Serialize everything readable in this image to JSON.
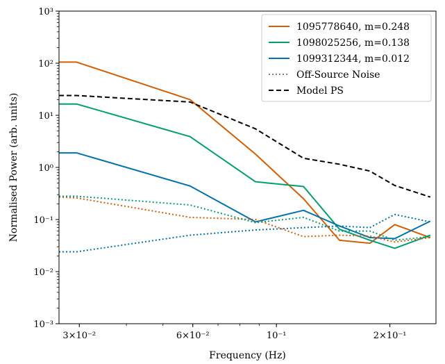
{
  "chart_data": {
    "type": "line",
    "xlabel": "Frequency (Hz)",
    "ylabel": "Normalised Power (arb. units)",
    "xscale": "log",
    "yscale": "log",
    "xlim": [
      0.0265,
      0.265
    ],
    "ylim": [
      0.001,
      1000
    ],
    "grid": false,
    "legend_position": "top-right",
    "x_ticks": [
      {
        "value": 0.03,
        "label": "3×10⁻²"
      },
      {
        "value": 0.06,
        "label": "6×10⁻²"
      },
      {
        "value": 0.1,
        "label": "10⁻¹"
      },
      {
        "value": 0.2,
        "label": "2×10⁻¹"
      }
    ],
    "y_ticks": [
      {
        "value": 0.001,
        "label": "10⁻³"
      },
      {
        "value": 0.01,
        "label": "10⁻²"
      },
      {
        "value": 0.1,
        "label": "10⁻¹"
      },
      {
        "value": 1,
        "label": "10⁰"
      },
      {
        "value": 10,
        "label": "10¹"
      },
      {
        "value": 100,
        "label": "10²"
      },
      {
        "value": 1000,
        "label": "10³"
      }
    ],
    "series": [
      {
        "name": "1095778640, m=0.248",
        "color": "#d55e00",
        "style": "solid",
        "x": [
          0.0265,
          0.0295,
          0.059,
          0.088,
          0.118,
          0.147,
          0.177,
          0.206,
          0.256
        ],
        "y": [
          105,
          105,
          20,
          1.8,
          0.25,
          0.04,
          0.035,
          0.08,
          0.045
        ]
      },
      {
        "name": "1098025256, m=0.138",
        "color": "#009e73",
        "style": "solid",
        "x": [
          0.0265,
          0.0295,
          0.059,
          0.088,
          0.118,
          0.147,
          0.177,
          0.206,
          0.256
        ],
        "y": [
          16.5,
          16.5,
          3.9,
          0.53,
          0.43,
          0.065,
          0.04,
          0.028,
          0.05
        ]
      },
      {
        "name": "1099312344, m=0.012",
        "color": "#0072b2",
        "style": "solid",
        "x": [
          0.0265,
          0.0295,
          0.059,
          0.088,
          0.118,
          0.147,
          0.177,
          0.206,
          0.256
        ],
        "y": [
          1.9,
          1.9,
          0.44,
          0.09,
          0.15,
          0.075,
          0.045,
          0.043,
          0.093
        ]
      },
      {
        "name": "",
        "color": "#d55e00",
        "style": "dotted",
        "x": [
          0.0265,
          0.0295,
          0.059,
          0.088,
          0.118,
          0.147,
          0.177,
          0.206,
          0.256
        ],
        "y": [
          0.27,
          0.26,
          0.11,
          0.1,
          0.047,
          0.05,
          0.048,
          0.037,
          0.045
        ]
      },
      {
        "name": "",
        "color": "#009e73",
        "style": "dotted",
        "x": [
          0.0265,
          0.0295,
          0.059,
          0.088,
          0.118,
          0.147,
          0.177,
          0.206,
          0.256
        ],
        "y": [
          0.28,
          0.28,
          0.19,
          0.087,
          0.11,
          0.06,
          0.06,
          0.04,
          0.047
        ]
      },
      {
        "name": "",
        "color": "#0072b2",
        "style": "dotted",
        "x": [
          0.0265,
          0.0295,
          0.059,
          0.088,
          0.118,
          0.147,
          0.177,
          0.206,
          0.256
        ],
        "y": [
          0.024,
          0.024,
          0.05,
          0.063,
          0.07,
          0.075,
          0.07,
          0.125,
          0.09
        ]
      },
      {
        "name": "Model PS",
        "color": "#000000",
        "style": "dashed",
        "x": [
          0.0265,
          0.0295,
          0.059,
          0.088,
          0.118,
          0.147,
          0.177,
          0.206,
          0.256
        ],
        "y": [
          24,
          24,
          18,
          5.5,
          1.5,
          1.15,
          0.85,
          0.45,
          0.27
        ]
      }
    ],
    "legend": [
      {
        "label": "1095778640, m=0.248",
        "color": "#d55e00",
        "style": "solid"
      },
      {
        "label": "1098025256, m=0.138",
        "color": "#009e73",
        "style": "solid"
      },
      {
        "label": "1099312344, m=0.012",
        "color": "#0072b2",
        "style": "solid"
      },
      {
        "label": "Off-Source Noise",
        "color": "#7f7f7f",
        "style": "dotted"
      },
      {
        "label": "Model PS",
        "color": "#000000",
        "style": "dashed"
      }
    ]
  }
}
